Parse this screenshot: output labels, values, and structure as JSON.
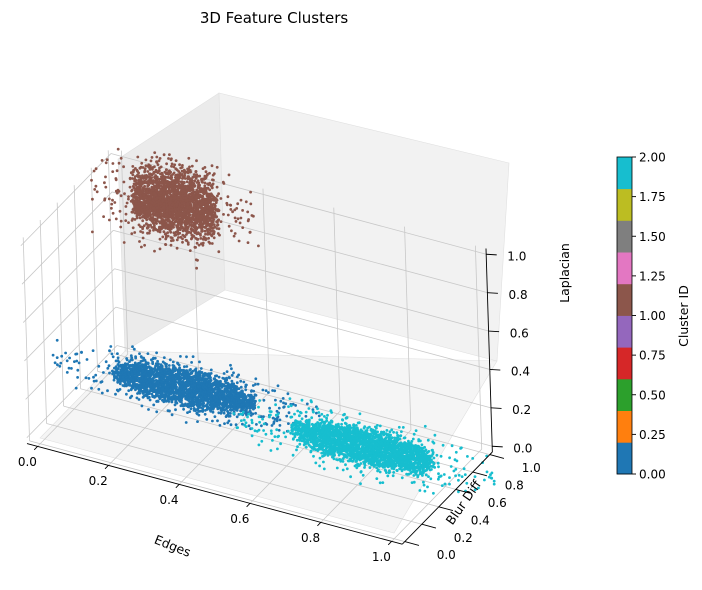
{
  "chart_data": {
    "type": "scatter",
    "projection": "3d",
    "title": "3D Feature Clusters",
    "xlabel": "Edges",
    "ylabel": "Blur Diff",
    "zlabel": "Laplacian",
    "xlim": [
      0,
      1
    ],
    "ylim": [
      0,
      1
    ],
    "zlim": [
      0,
      1
    ],
    "grid": true,
    "x_ticks": [
      "0.0",
      "0.2",
      "0.4",
      "0.6",
      "0.8",
      "1.0"
    ],
    "y_ticks": [
      "0.0",
      "0.2",
      "0.4",
      "0.6",
      "0.8",
      "1.0"
    ],
    "z_ticks": [
      "0.0",
      "0.2",
      "0.4",
      "0.6",
      "0.8",
      "1.0"
    ],
    "series": [
      {
        "cluster": 0,
        "color": "#1f77b4",
        "center": {
          "x": 0.22,
          "y": 0.78,
          "z": 0.02
        },
        "spread": {
          "x": 0.2,
          "y": 0.15,
          "z": 0.02
        }
      },
      {
        "cluster": 1,
        "color": "#8c564b",
        "center": {
          "x": 0.2,
          "y": 0.82,
          "z": 0.95
        },
        "spread": {
          "x": 0.12,
          "y": 0.15,
          "z": 0.07
        }
      },
      {
        "cluster": 2,
        "color": "#17becf",
        "center": {
          "x": 0.75,
          "y": 0.68,
          "z": 0.02
        },
        "spread": {
          "x": 0.2,
          "y": 0.15,
          "z": 0.02
        }
      }
    ],
    "colorbar": {
      "label": "Cluster ID",
      "range": [
        0,
        2
      ],
      "ticks": [
        "0.00",
        "0.25",
        "0.50",
        "0.75",
        "1.00",
        "1.25",
        "1.50",
        "1.75",
        "2.00"
      ],
      "colors": [
        "#1f77b4",
        "#ff7f0e",
        "#2ca02c",
        "#d62728",
        "#9467bd",
        "#8c564b",
        "#e377c2",
        "#7f7f7f",
        "#bcbd22",
        "#17becf"
      ]
    }
  }
}
